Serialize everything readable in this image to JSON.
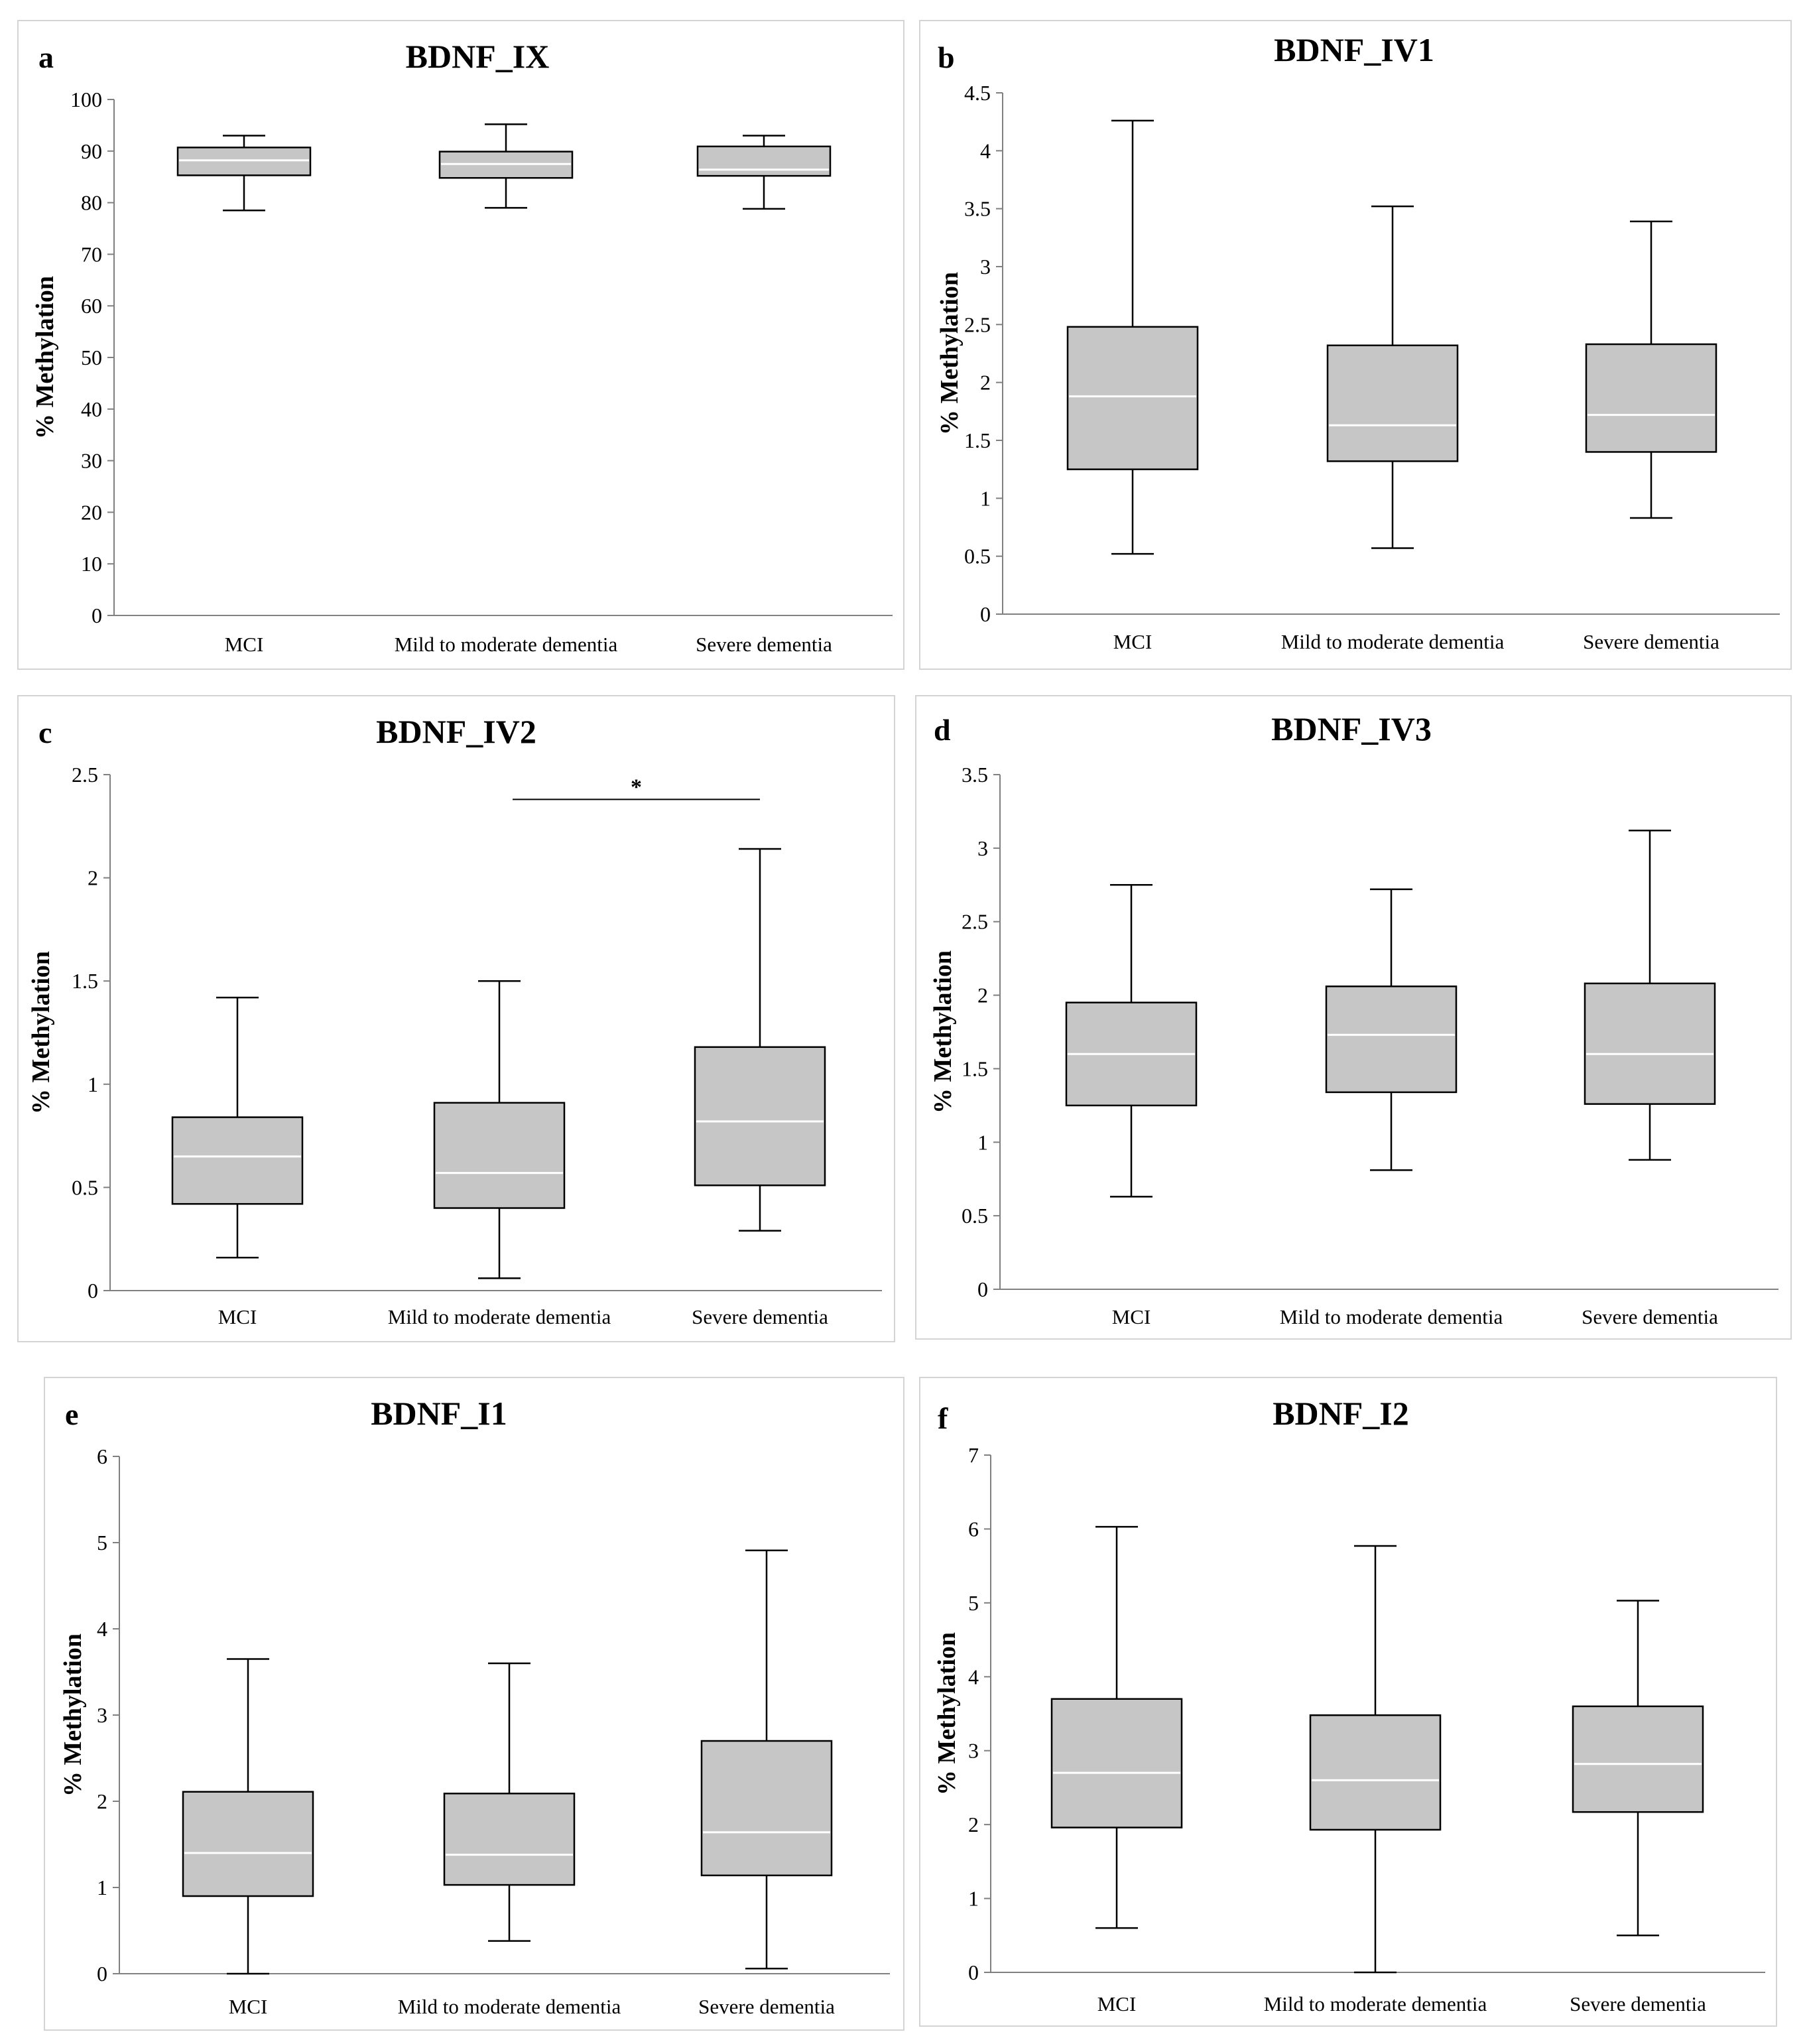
{
  "chart_data": [
    {
      "type": "box",
      "panel_label": "a",
      "title": "BDNF_IX",
      "ylabel": "% Methylation",
      "ylim": [
        0,
        100
      ],
      "yticks": [
        "0",
        "10",
        "20",
        "30",
        "40",
        "50",
        "60",
        "70",
        "80",
        "90",
        "100"
      ],
      "categories": [
        "MCI",
        "Mild to moderate dementia",
        "Severe dementia"
      ],
      "boxes": [
        {
          "min": 78.5,
          "q1": 85.3,
          "median": 88.2,
          "q3": 90.7,
          "max": 93.0
        },
        {
          "min": 79.0,
          "q1": 84.8,
          "median": 87.5,
          "q3": 89.9,
          "max": 95.2
        },
        {
          "min": 78.8,
          "q1": 85.2,
          "median": 86.4,
          "q3": 90.9,
          "max": 93.0
        }
      ],
      "significance": null
    },
    {
      "type": "box",
      "panel_label": "b",
      "title": "BDNF_IV1",
      "ylabel": "% Methylation",
      "ylim": [
        0,
        4.5
      ],
      "yticks": [
        "0",
        "0.5",
        "1",
        "1.5",
        "2",
        "2.5",
        "3",
        "3.5",
        "4",
        "4.5"
      ],
      "categories": [
        "MCI",
        "Mild to moderate dementia",
        "Severe dementia"
      ],
      "boxes": [
        {
          "min": 0.52,
          "q1": 1.25,
          "median": 1.88,
          "q3": 2.48,
          "max": 4.26
        },
        {
          "min": 0.57,
          "q1": 1.32,
          "median": 1.63,
          "q3": 2.32,
          "max": 3.52
        },
        {
          "min": 0.83,
          "q1": 1.4,
          "median": 1.72,
          "q3": 2.33,
          "max": 3.39
        }
      ],
      "significance": null
    },
    {
      "type": "box",
      "panel_label": "c",
      "title": "BDNF_IV2",
      "ylabel": "% Methylation",
      "ylim": [
        0,
        2.5
      ],
      "yticks": [
        "0",
        "0.5",
        "1",
        "1.5",
        "2",
        "2.5"
      ],
      "categories": [
        "MCI",
        "Mild to moderate dementia",
        "Severe dementia"
      ],
      "boxes": [
        {
          "min": 0.16,
          "q1": 0.42,
          "median": 0.65,
          "q3": 0.84,
          "max": 1.42
        },
        {
          "min": 0.06,
          "q1": 0.4,
          "median": 0.57,
          "q3": 0.91,
          "max": 1.5
        },
        {
          "min": 0.29,
          "q1": 0.51,
          "median": 0.82,
          "q3": 1.18,
          "max": 2.14
        }
      ],
      "significance": {
        "from": 1,
        "to": 2,
        "level": 2.38,
        "label": "*"
      }
    },
    {
      "type": "box",
      "panel_label": "d",
      "title": "BDNF_IV3",
      "ylabel": "% Methylation",
      "ylim": [
        0,
        3.5
      ],
      "yticks": [
        "0",
        "0.5",
        "1",
        "1.5",
        "2",
        "2.5",
        "3",
        "3.5"
      ],
      "categories": [
        "MCI",
        "Mild to moderate dementia",
        "Severe dementia"
      ],
      "boxes": [
        {
          "min": 0.63,
          "q1": 1.25,
          "median": 1.6,
          "q3": 1.95,
          "max": 2.75
        },
        {
          "min": 0.81,
          "q1": 1.34,
          "median": 1.73,
          "q3": 2.06,
          "max": 2.72
        },
        {
          "min": 0.88,
          "q1": 1.26,
          "median": 1.6,
          "q3": 2.08,
          "max": 3.12
        }
      ],
      "significance": null
    },
    {
      "type": "box",
      "panel_label": "e",
      "title": "BDNF_I1",
      "ylabel": "% Methylation",
      "ylim": [
        0,
        6
      ],
      "yticks": [
        "0",
        "1",
        "2",
        "3",
        "4",
        "5",
        "6"
      ],
      "categories": [
        "MCI",
        "Mild to moderate dementia",
        "Severe dementia"
      ],
      "boxes": [
        {
          "min": 0.0,
          "q1": 0.9,
          "median": 1.4,
          "q3": 2.11,
          "max": 3.65
        },
        {
          "min": 0.38,
          "q1": 1.03,
          "median": 1.38,
          "q3": 2.09,
          "max": 3.6
        },
        {
          "min": 0.06,
          "q1": 1.14,
          "median": 1.64,
          "q3": 2.7,
          "max": 4.91
        }
      ],
      "significance": null
    },
    {
      "type": "box",
      "panel_label": "f",
      "title": "BDNF_I2",
      "ylabel": "% Methylation",
      "ylim": [
        0,
        7
      ],
      "yticks": [
        "0",
        "1",
        "2",
        "3",
        "4",
        "5",
        "6",
        "7"
      ],
      "categories": [
        "MCI",
        "Mild to moderate dementia",
        "Severe dementia"
      ],
      "boxes": [
        {
          "min": 0.6,
          "q1": 1.96,
          "median": 2.7,
          "q3": 3.7,
          "max": 6.03
        },
        {
          "min": 0.0,
          "q1": 1.93,
          "median": 2.6,
          "q3": 3.48,
          "max": 5.77
        },
        {
          "min": 0.5,
          "q1": 2.17,
          "median": 2.82,
          "q3": 3.6,
          "max": 5.03
        }
      ],
      "significance": null
    }
  ],
  "colors": {
    "box_fill": "#c6c6c6",
    "median_line": "#ffffff",
    "axis": "#808080",
    "whisker": "#000000"
  }
}
